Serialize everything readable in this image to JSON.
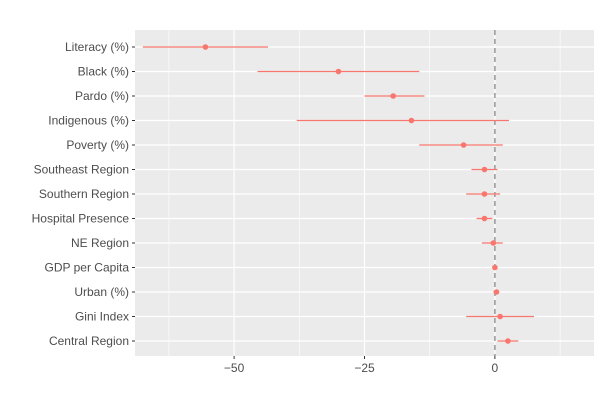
{
  "chart_data": {
    "type": "scatter",
    "subtype": "coefficient-plot-with-error-bars",
    "title": "",
    "xlabel": "",
    "ylabel": "",
    "xlim": [
      -69,
      19
    ],
    "x_ticks": [
      -50,
      -25,
      0
    ],
    "x_tick_labels": [
      "−50",
      "−25",
      "0"
    ],
    "reference_line": {
      "x": 0,
      "style": "dashed",
      "color": "#8c8c8c"
    },
    "grid": true,
    "legend": "none",
    "colors": {
      "point": "#f8766d",
      "panel": "#ebebeb",
      "gridline": "#ffffff",
      "text": "#4d4d4d"
    },
    "series": [
      {
        "points": [
          {
            "label": "Literacy (%)",
            "estimate": -55.5,
            "low": -67.5,
            "high": -43.5
          },
          {
            "label": "Black (%)",
            "estimate": -30.0,
            "low": -45.5,
            "high": -14.5
          },
          {
            "label": "Pardo (%)",
            "estimate": -19.5,
            "low": -25.0,
            "high": -13.5
          },
          {
            "label": "Indigenous (%)",
            "estimate": -16.0,
            "low": -38.0,
            "high": 2.7
          },
          {
            "label": "Poverty (%)",
            "estimate": -6.0,
            "low": -14.5,
            "high": 1.5
          },
          {
            "label": "Southeast Region",
            "estimate": -2.0,
            "low": -4.5,
            "high": 0.5
          },
          {
            "label": "Southern Region",
            "estimate": -2.0,
            "low": -5.5,
            "high": 1.0
          },
          {
            "label": "Hospital Presence",
            "estimate": -2.0,
            "low": -3.5,
            "high": -0.5
          },
          {
            "label": "NE Region",
            "estimate": -0.3,
            "low": -2.5,
            "high": 1.5
          },
          {
            "label": "GDP per Capita",
            "estimate": 0.0,
            "low": -0.2,
            "high": 0.2
          },
          {
            "label": "Urban (%)",
            "estimate": 0.3,
            "low": -0.3,
            "high": 0.8
          },
          {
            "label": "Gini Index",
            "estimate": 1.0,
            "low": -5.5,
            "high": 7.5
          },
          {
            "label": "Central Region",
            "estimate": 2.5,
            "low": 0.5,
            "high": 4.5
          }
        ]
      }
    ]
  }
}
